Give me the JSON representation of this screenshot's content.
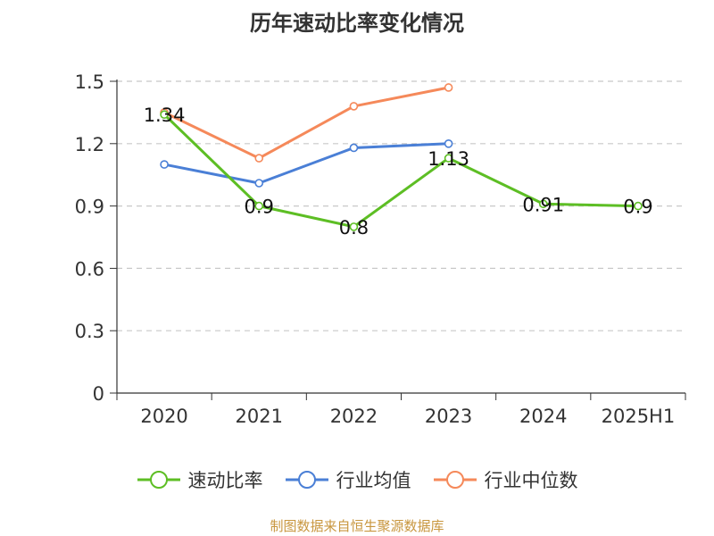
{
  "chart_data": {
    "type": "line",
    "title": "历年速动比率变化情况",
    "categories": [
      "2020",
      "2021",
      "2022",
      "2023",
      "2024",
      "2025H1"
    ],
    "ylim": [
      0,
      1.5
    ],
    "yticks": [
      0,
      0.3,
      0.6,
      0.9,
      1.2,
      1.5
    ],
    "ytick_labels": [
      "0",
      "0.3",
      "0.6",
      "0.9",
      "1.2",
      "1.5"
    ],
    "grid": "horizontal-dashed",
    "legend_position": "bottom",
    "series": [
      {
        "name": "速动比率",
        "color": "#5dbe24",
        "values": [
          1.34,
          0.9,
          0.8,
          1.13,
          0.91,
          0.9
        ],
        "labels": [
          "1.34",
          "0.9",
          "0.8",
          "1.13",
          "0.91",
          "0.9"
        ]
      },
      {
        "name": "行业均值",
        "color": "#4a7fd6",
        "values": [
          1.1,
          1.01,
          1.18,
          1.2,
          null,
          null
        ]
      },
      {
        "name": "行业中位数",
        "color": "#f5895a",
        "values": [
          1.35,
          1.13,
          1.38,
          1.47,
          null,
          null
        ]
      }
    ]
  },
  "footer": {
    "source": "制图数据来自恒生聚源数据库"
  }
}
